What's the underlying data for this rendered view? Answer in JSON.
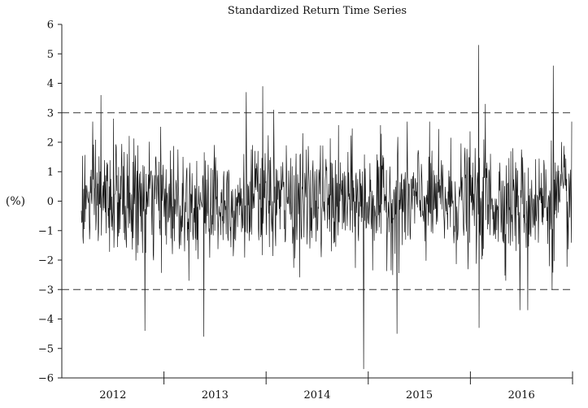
{
  "chart_data": {
    "type": "line",
    "title": "Standardized Return Time Series",
    "ylabel": "(%)",
    "xlabel": "",
    "ylim": [
      -6,
      6
    ],
    "yticks": [
      6,
      5,
      4,
      3,
      2,
      1,
      0,
      -1,
      -2,
      -3,
      -4,
      -5,
      -6
    ],
    "ytick_labels": [
      "6",
      "5",
      "4",
      "3",
      "2",
      "1",
      "0",
      "−1",
      "−2",
      "−3",
      "−4",
      "−5",
      "−6"
    ],
    "x_categories": [
      "2012",
      "2013",
      "2014",
      "2015",
      "2016"
    ],
    "reference_lines": [
      3,
      -3
    ],
    "grid": false,
    "series": [
      {
        "points_per_year": 250,
        "peaks": [
          {
            "t": 0.2,
            "v": 3.6
          },
          {
            "t": 0.33,
            "v": 2.8
          },
          {
            "t": 0.65,
            "v": -4.4
          },
          {
            "t": 1.25,
            "v": -4.6
          },
          {
            "t": 1.68,
            "v": 3.7
          },
          {
            "t": 1.85,
            "v": 3.9
          },
          {
            "t": 1.96,
            "v": 3.1
          },
          {
            "t": 2.88,
            "v": -5.7
          },
          {
            "t": 3.22,
            "v": -4.5
          },
          {
            "t": 4.05,
            "v": 5.3
          },
          {
            "t": 4.12,
            "v": 3.3
          },
          {
            "t": 4.05,
            "v": -4.3
          },
          {
            "t": 4.47,
            "v": -3.7
          },
          {
            "t": 4.55,
            "v": -3.7
          },
          {
            "t": 4.81,
            "v": 4.6
          },
          {
            "t": 4.8,
            "v": -3.0
          }
        ],
        "approx_range": [
          -5.7,
          5.3
        ]
      }
    ]
  }
}
